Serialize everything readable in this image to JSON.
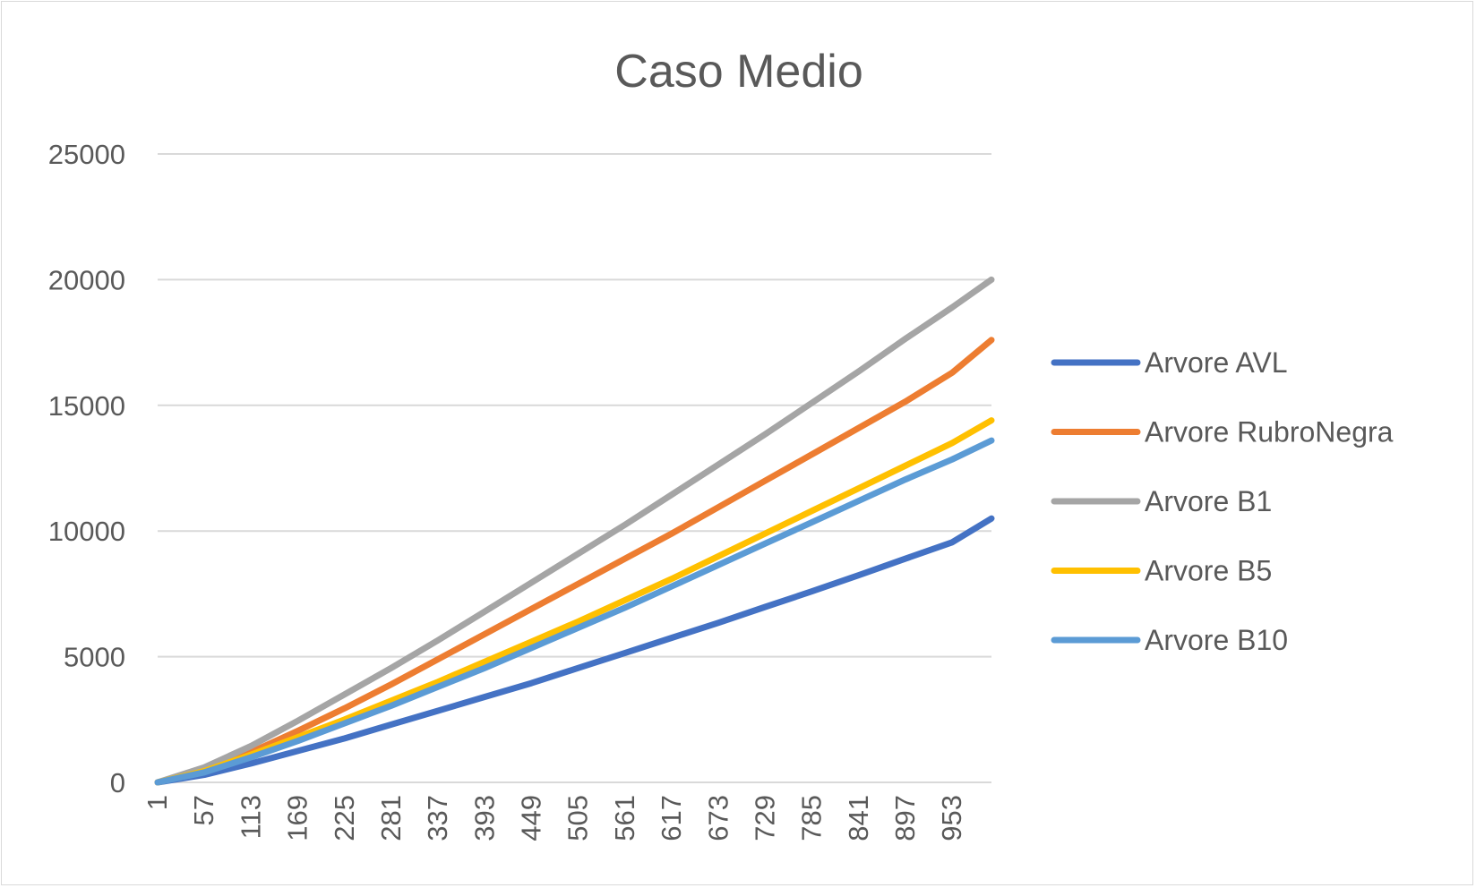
{
  "chart_data": {
    "type": "line",
    "title": "Caso Medio",
    "xlabel": "",
    "ylabel": "",
    "x": [
      1,
      57,
      113,
      169,
      225,
      281,
      337,
      393,
      449,
      505,
      561,
      617,
      673,
      729,
      785,
      841,
      897,
      953,
      1000
    ],
    "x_tick_labels": [
      "1",
      "57",
      "113",
      "169",
      "225",
      "281",
      "337",
      "393",
      "449",
      "505",
      "561",
      "617",
      "673",
      "729",
      "785",
      "841",
      "897",
      "953"
    ],
    "ylim": [
      0,
      25000
    ],
    "y_ticks": [
      0,
      5000,
      10000,
      15000,
      20000,
      25000
    ],
    "y_tick_labels": [
      "0",
      "5000",
      "10000",
      "15000",
      "20000",
      "25000"
    ],
    "grid": true,
    "legend_position": "right",
    "series": [
      {
        "name": "Arvore AVL",
        "color": "#4472c4",
        "values": [
          0,
          300,
          750,
          1250,
          1750,
          2300,
          2850,
          3400,
          3950,
          4550,
          5150,
          5750,
          6350,
          6980,
          7600,
          8240,
          8900,
          9550,
          10500
        ]
      },
      {
        "name": "Arvore RubroNegra",
        "color": "#ed7d31",
        "values": [
          0,
          500,
          1200,
          2050,
          2950,
          3900,
          4900,
          5900,
          6900,
          7900,
          8900,
          9900,
          10950,
          12000,
          13050,
          14100,
          15150,
          16300,
          17600
        ]
      },
      {
        "name": "Arvore B1",
        "color": "#a5a5a5",
        "values": [
          0,
          600,
          1450,
          2450,
          3500,
          4550,
          5650,
          6800,
          7950,
          9100,
          10250,
          11450,
          12650,
          13850,
          15100,
          16350,
          17650,
          18900,
          20000
        ]
      },
      {
        "name": "Arvore B5",
        "color": "#ffc000",
        "values": [
          0,
          450,
          1100,
          1800,
          2500,
          3250,
          4000,
          4800,
          5600,
          6400,
          7250,
          8100,
          9000,
          9900,
          10800,
          11700,
          12600,
          13500,
          14400
        ]
      },
      {
        "name": "Arvore B10",
        "color": "#5b9bd5",
        "values": [
          0,
          400,
          1000,
          1650,
          2350,
          3050,
          3800,
          4550,
          5350,
          6150,
          6950,
          7800,
          8650,
          9500,
          10350,
          11200,
          12050,
          12850,
          13600
        ]
      }
    ]
  }
}
